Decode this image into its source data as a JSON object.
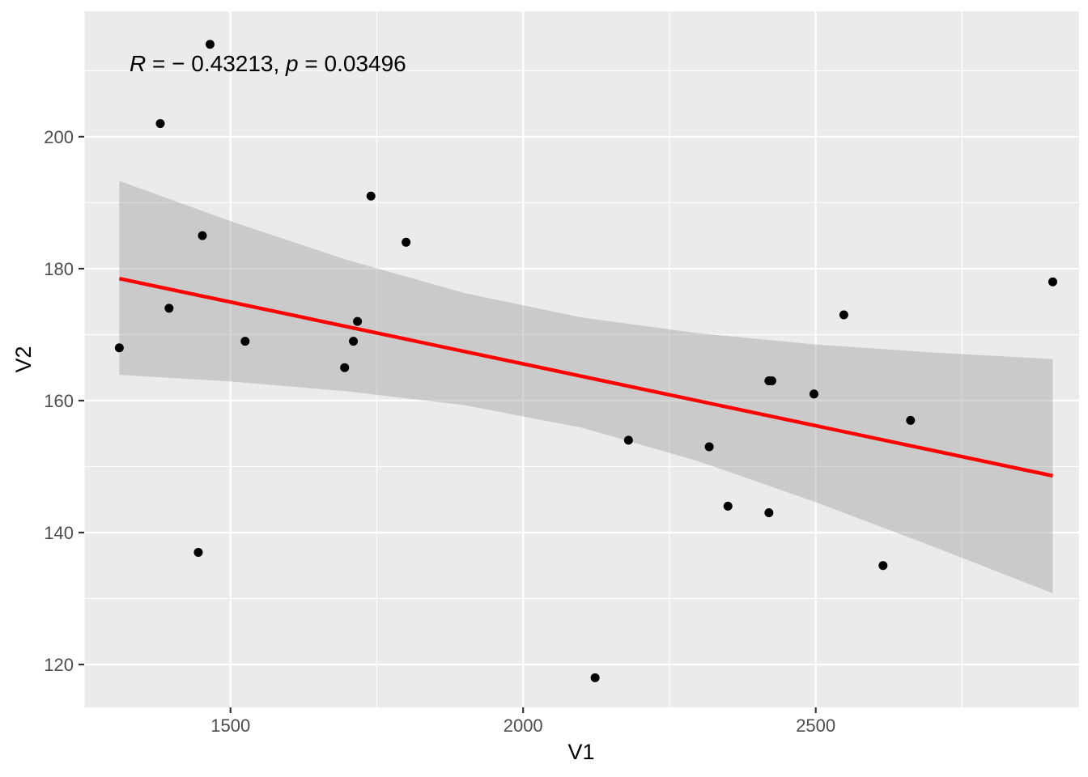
{
  "chart_data": {
    "type": "scatter",
    "xlabel": "V1",
    "ylabel": "V2",
    "xlim": [
      1250,
      2950
    ],
    "ylim": [
      113.5,
      219
    ],
    "x_ticks": [
      1500,
      2000,
      2500
    ],
    "y_ticks": [
      120,
      140,
      160,
      180,
      200
    ],
    "grid": true,
    "legend": "none",
    "annotation": {
      "text_R": "R",
      "text_mid": " = − 0.43213, ",
      "text_p": "p",
      "text_end": " = 0.03496"
    },
    "points": [
      {
        "x": 1310,
        "y": 168
      },
      {
        "x": 1380,
        "y": 202
      },
      {
        "x": 1395,
        "y": 174
      },
      {
        "x": 1445,
        "y": 137
      },
      {
        "x": 1452,
        "y": 185
      },
      {
        "x": 1465,
        "y": 214
      },
      {
        "x": 1525,
        "y": 169
      },
      {
        "x": 1695,
        "y": 165
      },
      {
        "x": 1710,
        "y": 169
      },
      {
        "x": 1717,
        "y": 172
      },
      {
        "x": 1740,
        "y": 191
      },
      {
        "x": 1800,
        "y": 184
      },
      {
        "x": 2123,
        "y": 118
      },
      {
        "x": 2180,
        "y": 154
      },
      {
        "x": 2318,
        "y": 153
      },
      {
        "x": 2350,
        "y": 144
      },
      {
        "x": 2420,
        "y": 143
      },
      {
        "x": 2420,
        "y": 163
      },
      {
        "x": 2425,
        "y": 163
      },
      {
        "x": 2497,
        "y": 161
      },
      {
        "x": 2548,
        "y": 173
      },
      {
        "x": 2615,
        "y": 135
      },
      {
        "x": 2662,
        "y": 157
      },
      {
        "x": 2905,
        "y": 178
      }
    ],
    "fit_line": {
      "color": "#ff0000",
      "x": [
        1310,
        2905
      ],
      "y": [
        178.5,
        148.6
      ]
    },
    "confidence_band": {
      "color": "#999999",
      "x": [
        1310,
        1500,
        1700,
        1900,
        2100,
        2300,
        2500,
        2700,
        2905
      ],
      "upper": [
        193.3,
        187.2,
        181.3,
        176.3,
        172.6,
        170.2,
        168.5,
        167.3,
        166.3
      ],
      "lower": [
        163.9,
        162.9,
        161.4,
        159.3,
        155.9,
        150.8,
        144.6,
        137.9,
        130.8
      ]
    },
    "colors": {
      "panel_background": "#ebebeb",
      "grid": "#ffffff",
      "points": "#000000"
    }
  }
}
